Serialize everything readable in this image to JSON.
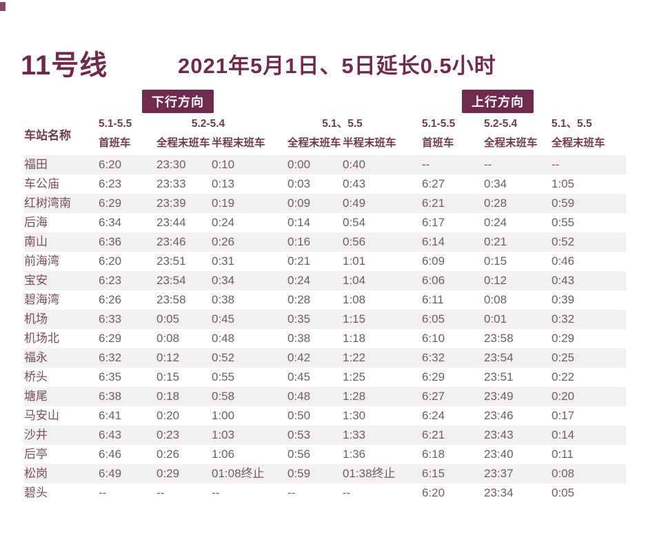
{
  "page": {
    "title": "11号线",
    "subtitle": "2021年5月1日、5日延长0.5小时",
    "down_badge": "下行方向",
    "up_badge": "上行方向"
  },
  "table": {
    "station_header": "车站名称",
    "header": {
      "d1_date": "5.1-5.5",
      "d1_label": "首班车",
      "d2_date": "5.2-5.4",
      "d2_label_a": "全程末班车",
      "d2_label_b": "半程末班车",
      "d3_date": "5.1、5.5",
      "d3_label_a": "全程末班车",
      "d3_label_b": "半程末班车",
      "u1_date": "5.1-5.5",
      "u1_label": "首班车",
      "u2_date": "5.2-5.4",
      "u2_label": "全程末班车",
      "u3_date": "5.1、5.5",
      "u3_label": "全程末班车"
    },
    "rows": [
      {
        "station": "福田",
        "times": [
          "6:20",
          "23:30",
          "0:10",
          "0:00",
          "0:40",
          "--",
          "--",
          "--"
        ]
      },
      {
        "station": "车公庙",
        "times": [
          "6:23",
          "23:33",
          "0:13",
          "0:03",
          "0:43",
          "6:27",
          "0:34",
          "1:05"
        ]
      },
      {
        "station": "红树湾南",
        "times": [
          "6:29",
          "23:39",
          "0:19",
          "0:09",
          "0:49",
          "6:21",
          "0:28",
          "0:59"
        ]
      },
      {
        "station": "后海",
        "times": [
          "6:34",
          "23:44",
          "0:24",
          "0:14",
          "0:54",
          "6:17",
          "0:24",
          "0:55"
        ]
      },
      {
        "station": "南山",
        "times": [
          "6:36",
          "23:46",
          "0:26",
          "0:16",
          "0:56",
          "6:14",
          "0:21",
          "0:52"
        ]
      },
      {
        "station": "前海湾",
        "times": [
          "6:20",
          "23:51",
          "0:31",
          "0:21",
          "1:01",
          "6:09",
          "0:15",
          "0:46"
        ]
      },
      {
        "station": "宝安",
        "times": [
          "6:23",
          "23:54",
          "0:34",
          "0:24",
          "1:04",
          "6:06",
          "0:12",
          "0:43"
        ]
      },
      {
        "station": "碧海湾",
        "times": [
          "6:26",
          "23:58",
          "0:38",
          "0:28",
          "1:08",
          "6:11",
          "0:08",
          "0:39"
        ]
      },
      {
        "station": "机场",
        "times": [
          "6:33",
          "0:05",
          "0:45",
          "0:35",
          "1:15",
          "6:05",
          "0:01",
          "0:32"
        ]
      },
      {
        "station": "机场北",
        "times": [
          "6:29",
          "0:08",
          "0:48",
          "0:38",
          "1:18",
          "6:10",
          "23:58",
          "0:29"
        ]
      },
      {
        "station": "福永",
        "times": [
          "6:32",
          "0:12",
          "0:52",
          "0:42",
          "1:22",
          "6:32",
          "23:54",
          "0:25"
        ]
      },
      {
        "station": "桥头",
        "times": [
          "6:35",
          "0:15",
          "0:55",
          "0:45",
          "1:25",
          "6:29",
          "23:51",
          "0:22"
        ]
      },
      {
        "station": "塘尾",
        "times": [
          "6:38",
          "0:18",
          "0:58",
          "0:48",
          "1:28",
          "6:27",
          "23:49",
          "0:20"
        ]
      },
      {
        "station": "马安山",
        "times": [
          "6:41",
          "0:20",
          "1:00",
          "0:50",
          "1:30",
          "6:24",
          "23:46",
          "0:17"
        ]
      },
      {
        "station": "沙井",
        "times": [
          "6:43",
          "0:23",
          "1:03",
          "0:53",
          "1:33",
          "6:21",
          "23:43",
          "0:14"
        ]
      },
      {
        "station": "后亭",
        "times": [
          "6:46",
          "0:26",
          "1:06",
          "0:56",
          "1:36",
          "6:18",
          "23:40",
          "0:11"
        ]
      },
      {
        "station": "松岗",
        "times": [
          "6:49",
          "0:29",
          "01:08终止",
          "0:59",
          "01:38终止",
          "6:15",
          "23:37",
          "0:08"
        ]
      },
      {
        "station": "碧头",
        "times": [
          "--",
          "--",
          "--",
          "--",
          "--",
          "6:20",
          "23:34",
          "0:05"
        ]
      }
    ]
  },
  "colors": {
    "theme": "#6e2b4d",
    "header_text": "#6f3c51",
    "station_text": "#774f5c",
    "time_text": "#6e5e64",
    "stripe": "#f2f0f0",
    "page_bg": "#ffffff"
  }
}
